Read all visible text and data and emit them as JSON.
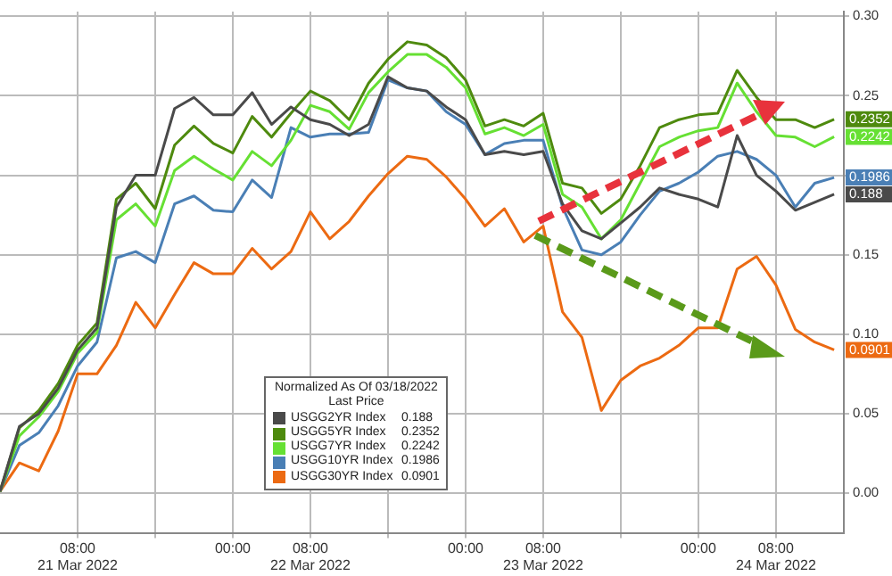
{
  "chart_data": {
    "type": "line",
    "x": [
      "2022-03-21T00:00",
      "2022-03-21T02:00",
      "2022-03-21T04:00",
      "2022-03-21T06:00",
      "2022-03-21T08:00",
      "2022-03-21T10:00",
      "2022-03-21T12:00",
      "2022-03-21T14:00",
      "2022-03-21T16:00",
      "2022-03-21T18:00",
      "2022-03-21T20:00",
      "2022-03-21T22:00",
      "2022-03-22T00:00",
      "2022-03-22T02:00",
      "2022-03-22T04:00",
      "2022-03-22T06:00",
      "2022-03-22T08:00",
      "2022-03-22T10:00",
      "2022-03-22T12:00",
      "2022-03-22T14:00",
      "2022-03-22T16:00",
      "2022-03-22T18:00",
      "2022-03-22T20:00",
      "2022-03-22T22:00",
      "2022-03-23T00:00",
      "2022-03-23T02:00",
      "2022-03-23T04:00",
      "2022-03-23T06:00",
      "2022-03-23T08:00",
      "2022-03-23T10:00",
      "2022-03-23T12:00",
      "2022-03-23T14:00",
      "2022-03-23T16:00",
      "2022-03-23T18:00",
      "2022-03-23T20:00",
      "2022-03-23T22:00",
      "2022-03-24T00:00",
      "2022-03-24T02:00",
      "2022-03-24T04:00",
      "2022-03-24T06:00",
      "2022-03-24T08:00",
      "2022-03-24T10:00",
      "2022-03-24T12:00",
      "2022-03-24T14:00"
    ],
    "series": [
      {
        "name": "USGG2YR Index",
        "color": "#4a4a4a",
        "values": [
          0.001,
          0.042,
          0.05,
          0.066,
          0.09,
          0.104,
          0.18,
          0.2,
          0.2,
          0.242,
          0.249,
          0.238,
          0.238,
          0.252,
          0.232,
          0.243,
          0.235,
          0.232,
          0.225,
          0.232,
          0.262,
          0.255,
          0.253,
          0.243,
          0.235,
          0.213,
          0.215,
          0.213,
          0.215,
          0.182,
          0.165,
          0.16,
          0.17,
          0.18,
          0.192,
          0.188,
          0.185,
          0.18,
          0.225,
          0.2,
          0.19,
          0.178,
          0.183,
          0.188
        ],
        "value_labels": [
          null,
          null,
          null,
          null,
          null,
          null,
          null,
          null,
          null,
          null,
          null,
          null,
          null,
          null,
          null,
          null,
          null,
          null,
          null,
          null,
          null,
          null,
          null,
          null,
          null,
          null,
          null,
          null,
          null,
          null,
          null,
          null,
          null,
          null,
          null,
          null,
          null,
          null,
          null,
          null,
          null,
          null,
          null,
          "0.188"
        ]
      },
      {
        "name": "USGG5YR Index",
        "color": "#4e8a0e",
        "values": [
          0.001,
          0.041,
          0.052,
          0.069,
          0.093,
          0.107,
          0.185,
          0.195,
          0.179,
          0.219,
          0.231,
          0.22,
          0.214,
          0.237,
          0.224,
          0.239,
          0.253,
          0.247,
          0.235,
          0.258,
          0.273,
          0.284,
          0.282,
          0.274,
          0.26,
          0.231,
          0.235,
          0.231,
          0.239,
          0.195,
          0.192,
          0.176,
          0.185,
          0.206,
          0.23,
          0.235,
          0.238,
          0.239,
          0.266,
          0.249,
          0.235,
          0.235,
          0.23,
          0.2352
        ],
        "value_labels": [
          null,
          null,
          null,
          null,
          null,
          null,
          null,
          null,
          null,
          null,
          null,
          null,
          null,
          null,
          null,
          null,
          null,
          null,
          null,
          null,
          null,
          null,
          null,
          null,
          null,
          null,
          null,
          null,
          null,
          null,
          null,
          null,
          null,
          null,
          null,
          null,
          null,
          null,
          null,
          null,
          null,
          null,
          null,
          "0.2352"
        ]
      },
      {
        "name": "USGG7YR Index",
        "color": "#66e033",
        "values": [
          0.001,
          0.036,
          0.048,
          0.064,
          0.088,
          0.101,
          0.172,
          0.182,
          0.168,
          0.203,
          0.212,
          0.204,
          0.197,
          0.215,
          0.206,
          0.222,
          0.244,
          0.24,
          0.229,
          0.252,
          0.265,
          0.276,
          0.276,
          0.268,
          0.255,
          0.226,
          0.23,
          0.225,
          0.232,
          0.188,
          0.18,
          0.16,
          0.172,
          0.195,
          0.218,
          0.224,
          0.228,
          0.23,
          0.258,
          0.24,
          0.225,
          0.224,
          0.218,
          0.2242
        ],
        "value_labels": [
          null,
          null,
          null,
          null,
          null,
          null,
          null,
          null,
          null,
          null,
          null,
          null,
          null,
          null,
          null,
          null,
          null,
          null,
          null,
          null,
          null,
          null,
          null,
          null,
          null,
          null,
          null,
          null,
          null,
          null,
          null,
          null,
          null,
          null,
          null,
          null,
          null,
          null,
          null,
          null,
          null,
          null,
          null,
          "0.2242"
        ]
      },
      {
        "name": "USGG10YR Index",
        "color": "#4a7fb5",
        "values": [
          0.001,
          0.03,
          0.038,
          0.055,
          0.08,
          0.095,
          0.148,
          0.152,
          0.145,
          0.182,
          0.187,
          0.178,
          0.177,
          0.197,
          0.186,
          0.23,
          0.224,
          0.226,
          0.226,
          0.227,
          0.26,
          0.255,
          0.253,
          0.24,
          0.232,
          0.213,
          0.22,
          0.222,
          0.222,
          0.18,
          0.153,
          0.15,
          0.158,
          0.175,
          0.19,
          0.195,
          0.202,
          0.212,
          0.215,
          0.21,
          0.2,
          0.18,
          0.195,
          0.1986
        ],
        "value_labels": [
          null,
          null,
          null,
          null,
          null,
          null,
          null,
          null,
          null,
          null,
          null,
          null,
          null,
          null,
          null,
          null,
          null,
          null,
          null,
          null,
          null,
          null,
          null,
          null,
          null,
          null,
          null,
          null,
          null,
          null,
          null,
          null,
          null,
          null,
          null,
          null,
          null,
          null,
          null,
          null,
          null,
          null,
          null,
          "0.1986"
        ]
      },
      {
        "name": "USGG30YR Index",
        "color": "#ec6a12",
        "values": [
          0.001,
          0.019,
          0.014,
          0.039,
          0.075,
          0.075,
          0.093,
          0.12,
          0.104,
          0.125,
          0.145,
          0.138,
          0.138,
          0.154,
          0.141,
          0.152,
          0.177,
          0.16,
          0.171,
          0.187,
          0.201,
          0.212,
          0.21,
          0.199,
          0.185,
          0.168,
          0.179,
          0.158,
          0.168,
          0.114,
          0.098,
          0.052,
          0.071,
          0.08,
          0.085,
          0.093,
          0.104,
          0.104,
          0.141,
          0.149,
          0.131,
          0.103,
          0.095,
          0.0901
        ],
        "value_labels": [
          null,
          null,
          null,
          null,
          null,
          null,
          null,
          null,
          null,
          null,
          null,
          null,
          null,
          null,
          null,
          null,
          null,
          null,
          null,
          null,
          null,
          null,
          null,
          null,
          null,
          null,
          null,
          null,
          null,
          null,
          null,
          null,
          null,
          null,
          null,
          null,
          null,
          null,
          null,
          null,
          null,
          null,
          null,
          "0.0901"
        ]
      }
    ],
    "xlim": [
      "2022-03-21T00:00",
      "2022-03-24T15:00"
    ],
    "xticks": [
      {
        "value": "2022-03-21T08:00",
        "label": "08:00\n21 Mar 2022"
      },
      {
        "value": "2022-03-21T16:00",
        "label": null
      },
      {
        "value": "2022-03-22T00:00",
        "label": "00:00"
      },
      {
        "value": "2022-03-22T08:00",
        "label": "08:00\n22 Mar 2022"
      },
      {
        "value": "2022-03-22T16:00",
        "label": null
      },
      {
        "value": "2022-03-23T00:00",
        "label": "00:00"
      },
      {
        "value": "2022-03-23T08:00",
        "label": "08:00\n23 Mar 2022"
      },
      {
        "value": "2022-03-23T16:00",
        "label": null
      },
      {
        "value": "2022-03-24T00:00",
        "label": "00:00"
      },
      {
        "value": "2022-03-24T08:00",
        "label": "08:00\n24 Mar 2022"
      }
    ],
    "ylim": [
      -0.025,
      0.303
    ],
    "yticks": [
      {
        "value": 0,
        "label": "0.00"
      },
      {
        "value": 0.05,
        "label": "0.05"
      },
      {
        "value": 0.1,
        "label": "0.10"
      },
      {
        "value": 0.15,
        "label": "0.15"
      },
      {
        "value": 0.2,
        "label": null
      },
      {
        "value": 0.25,
        "label": "0.25"
      },
      {
        "value": 0.3,
        "label": "0.30"
      }
    ],
    "grid": true,
    "legend": "bottom",
    "legend_title": "Normalized As Of 03/18/2022\nLast Price"
  }
}
